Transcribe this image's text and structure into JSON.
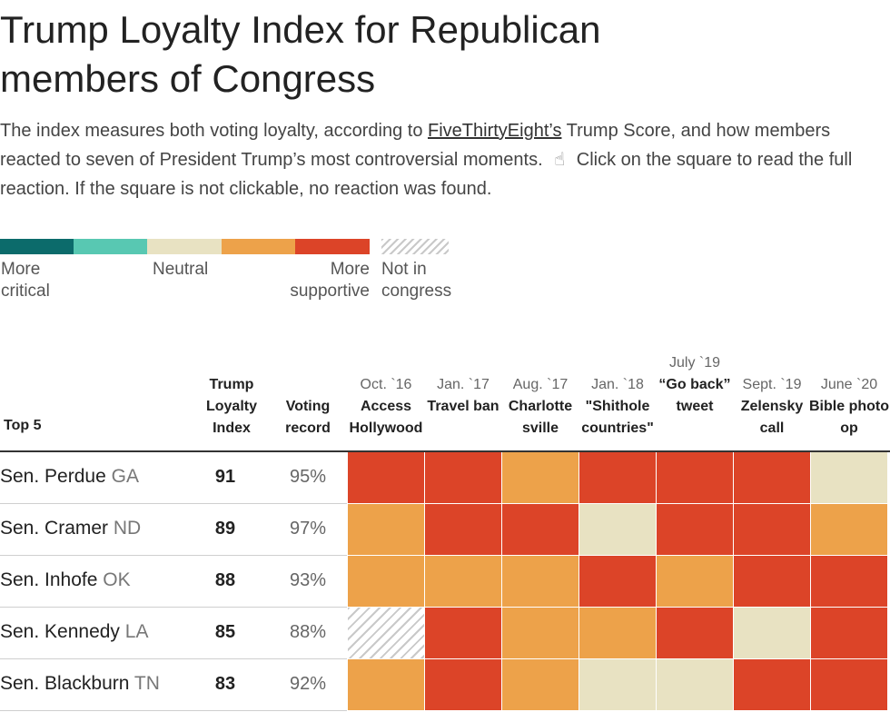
{
  "title": "Trump Loyalty Index for Republican members of Congress",
  "subtitle": {
    "part1": "The index measures both voting loyalty, according to ",
    "link": "FiveThirtyEight’s",
    "part2": " Trump Score, and how members reacted to seven of President Trump’s most controversial moments.",
    "part3": " Click on the square to read the full reaction. If the square is not clickable, no reaction was found.",
    "pointer_icon": "hand-pointer-icon"
  },
  "legend": {
    "colors": [
      "#0c6b6b",
      "#58c8b2",
      "#e8e2c2",
      "#eda24a",
      "#dc4428"
    ],
    "not_in_congress_color": "#c9c9c9",
    "more_critical": "More critical",
    "neutral": "Neutral",
    "more_supportive": "More supportive",
    "not_in_congress": "Not in congress"
  },
  "table": {
    "group_label": "Top 5",
    "col_index": "Trump Loyalty Index",
    "col_voting": "Voting record",
    "events": [
      {
        "date": "Oct. `16",
        "label": "Access Hollywood"
      },
      {
        "date": "Jan. `17",
        "label": "Travel ban"
      },
      {
        "date": "Aug. `17",
        "label": "Charlotte sville"
      },
      {
        "date": "Jan. `18",
        "label": "\"Shithole countries\""
      },
      {
        "date": "July `19",
        "label": "“Go back” tweet"
      },
      {
        "date": "Sept. `19",
        "label": "Zelensky call"
      },
      {
        "date": "June `20",
        "label": "Bible photo op"
      }
    ]
  },
  "chart_data": {
    "type": "heatmap",
    "title": "Trump Loyalty Index for Republican members of Congress",
    "categories": [
      "Access Hollywood",
      "Travel ban",
      "Charlottesville",
      "\"Shithole countries\"",
      "“Go back” tweet",
      "Zelensky call",
      "Bible photo op"
    ],
    "scale": [
      "More critical",
      "",
      "Neutral",
      "",
      "More supportive"
    ],
    "rows": [
      {
        "name": "Sen. Perdue",
        "state": "GA",
        "index": "91",
        "voting": "95%",
        "reactions": [
          "More supportive",
          "More supportive",
          "Supportive",
          "More supportive",
          "More supportive",
          "More supportive",
          "Neutral"
        ]
      },
      {
        "name": "Sen. Cramer",
        "state": "ND",
        "index": "89",
        "voting": "97%",
        "reactions": [
          "Supportive",
          "More supportive",
          "More supportive",
          "Neutral",
          "More supportive",
          "More supportive",
          "Supportive"
        ]
      },
      {
        "name": "Sen. Inhofe",
        "state": "OK",
        "index": "88",
        "voting": "93%",
        "reactions": [
          "Supportive",
          "Supportive",
          "Supportive",
          "More supportive",
          "Supportive",
          "More supportive",
          "More supportive"
        ]
      },
      {
        "name": "Sen. Kennedy",
        "state": "LA",
        "index": "85",
        "voting": "88%",
        "reactions": [
          "Not in congress",
          "More supportive",
          "Supportive",
          "Supportive",
          "More supportive",
          "Neutral",
          "More supportive"
        ]
      },
      {
        "name": "Sen. Blackburn",
        "state": "TN",
        "index": "83",
        "voting": "92%",
        "reactions": [
          "Supportive",
          "More supportive",
          "Supportive",
          "Neutral",
          "Neutral",
          "More supportive",
          "More supportive"
        ]
      }
    ]
  }
}
